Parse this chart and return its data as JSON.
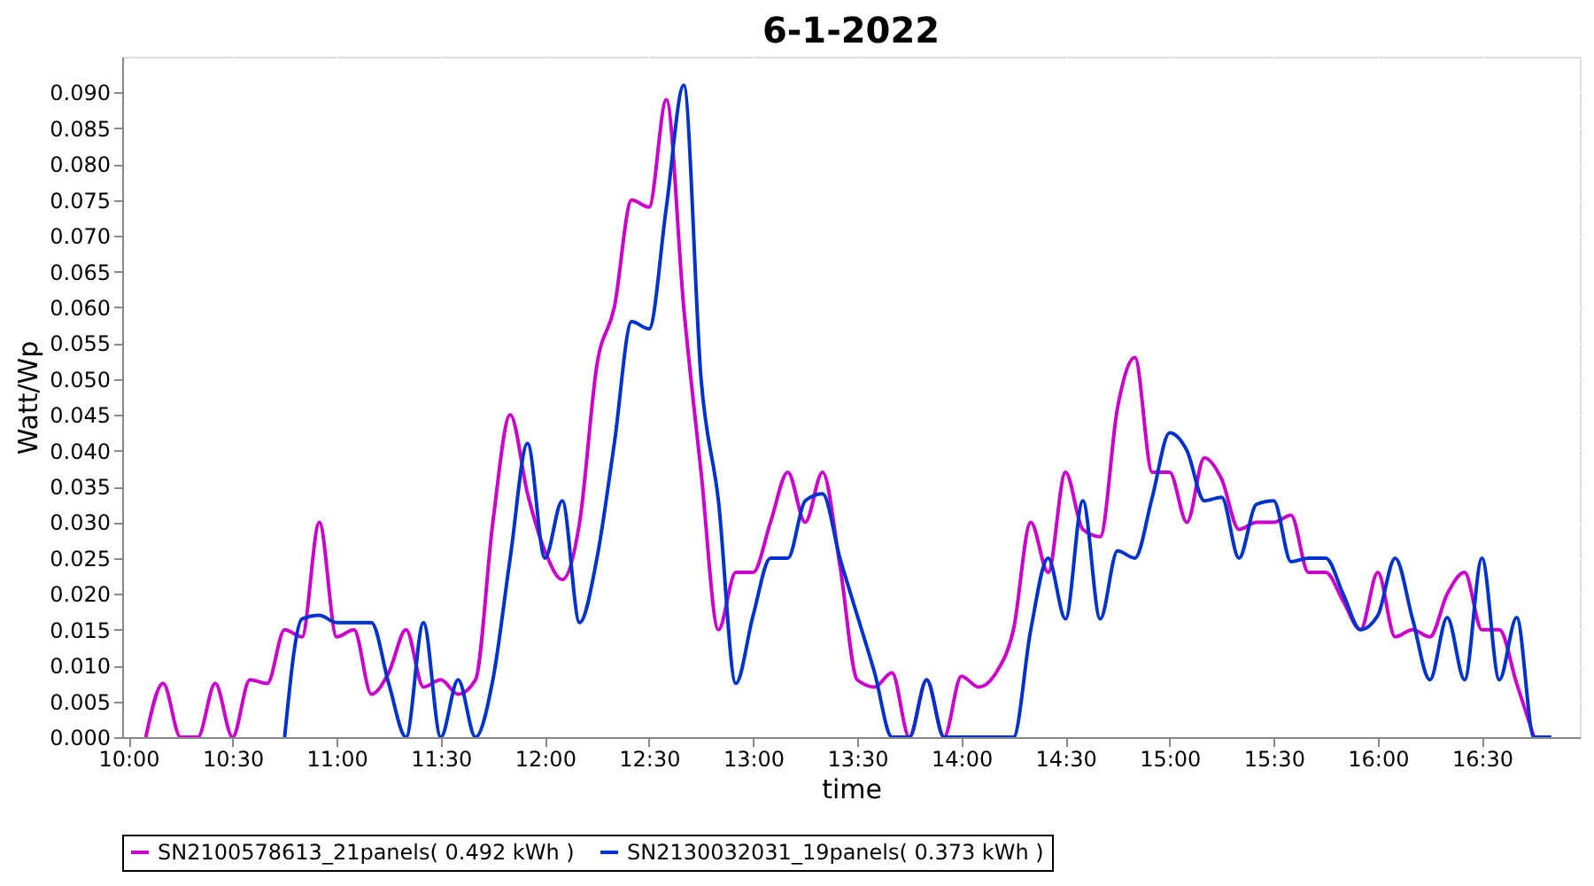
{
  "chart_data": {
    "type": "line",
    "title": "6-1-2022",
    "xlabel": "time",
    "ylabel": "Watt/Wp",
    "xlim": [
      9.97,
      16.97
    ],
    "ylim": [
      0,
      0.095
    ],
    "xticks": [
      {
        "value": 10,
        "label": "10:00"
      },
      {
        "value": 10.5,
        "label": "10:30"
      },
      {
        "value": 11,
        "label": "11:00"
      },
      {
        "value": 11.5,
        "label": "11:30"
      },
      {
        "value": 12,
        "label": "12:00"
      },
      {
        "value": 12.5,
        "label": "12:30"
      },
      {
        "value": 13,
        "label": "13:00"
      },
      {
        "value": 13.5,
        "label": "13:30"
      },
      {
        "value": 14,
        "label": "14:00"
      },
      {
        "value": 14.5,
        "label": "14:30"
      },
      {
        "value": 15,
        "label": "15:00"
      },
      {
        "value": 15.5,
        "label": "15:30"
      },
      {
        "value": 16,
        "label": "16:00"
      },
      {
        "value": 16.5,
        "label": "16:30"
      }
    ],
    "yticks": [
      {
        "value": 0,
        "label": "0.000"
      },
      {
        "value": 0.005,
        "label": "0.005"
      },
      {
        "value": 0.01,
        "label": "0.010"
      },
      {
        "value": 0.015,
        "label": "0.015"
      },
      {
        "value": 0.02,
        "label": "0.020"
      },
      {
        "value": 0.025,
        "label": "0.025"
      },
      {
        "value": 0.03,
        "label": "0.030"
      },
      {
        "value": 0.035,
        "label": "0.035"
      },
      {
        "value": 0.04,
        "label": "0.040"
      },
      {
        "value": 0.045,
        "label": "0.045"
      },
      {
        "value": 0.05,
        "label": "0.050"
      },
      {
        "value": 0.055,
        "label": "0.055"
      },
      {
        "value": 0.06,
        "label": "0.060"
      },
      {
        "value": 0.065,
        "label": "0.065"
      },
      {
        "value": 0.07,
        "label": "0.070"
      },
      {
        "value": 0.075,
        "label": "0.075"
      },
      {
        "value": 0.08,
        "label": "0.080"
      },
      {
        "value": 0.085,
        "label": "0.085"
      },
      {
        "value": 0.09,
        "label": "0.090"
      }
    ],
    "grid": true,
    "legend": "bottom",
    "line_style": "solid",
    "series": [
      {
        "name": "SN2100578613_21panels( 0.492 kWh )",
        "color": "#cc00cc",
        "x": [
          10.0833,
          10.1667,
          10.25,
          10.3333,
          10.4167,
          10.5,
          10.5833,
          10.6667,
          10.75,
          10.8333,
          10.9167,
          11,
          11.0833,
          11.1667,
          11.25,
          11.3333,
          11.4167,
          11.5,
          11.5833,
          11.6667,
          11.75,
          11.8333,
          11.9167,
          12,
          12.0833,
          12.1667,
          12.25,
          12.3333,
          12.4167,
          12.5,
          12.5833,
          12.6667,
          12.75,
          12.8333,
          12.9167,
          13,
          13.0833,
          13.1667,
          13.25,
          13.3333,
          13.4167,
          13.5,
          13.5833,
          13.6667,
          13.75,
          13.8333,
          13.9167,
          14,
          14.0833,
          14.1667,
          14.25,
          14.3333,
          14.4167,
          14.5,
          14.5833,
          14.6667,
          14.75,
          14.8333,
          14.9167,
          15,
          15.0833,
          15.1667,
          15.25,
          15.3333,
          15.4167,
          15.5,
          15.5833,
          15.6667,
          15.75,
          15.8333,
          15.9167,
          16,
          16.0833,
          16.1667,
          16.25,
          16.3333,
          16.4167,
          16.5,
          16.5833,
          16.6667,
          16.75
        ],
        "values": [
          0,
          0.0075,
          0,
          0,
          0.0075,
          0,
          0.008,
          0.0075,
          0.015,
          0.014,
          0.03,
          0.014,
          0.015,
          0.006,
          0.009,
          0.015,
          0.007,
          0.008,
          0.006,
          0.008,
          0.03,
          0.045,
          0.034,
          0.026,
          0.022,
          0.03,
          0.052,
          0.06,
          0.075,
          0.074,
          0.089,
          0.06,
          0.037,
          0.015,
          0.023,
          0.023,
          0.03,
          0.037,
          0.03,
          0.037,
          0.024,
          0.008,
          0.007,
          0.009,
          0,
          0.008,
          0,
          0.0085,
          0.007,
          0.009,
          0.015,
          0.03,
          0.023,
          0.037,
          0.029,
          0.028,
          0.046,
          0.053,
          0.037,
          0.037,
          0.03,
          0.039,
          0.036,
          0.029,
          0.03,
          0.03,
          0.031,
          0.023,
          0.023,
          0.019,
          0.015,
          0.023,
          0.014,
          0.015,
          0.014,
          0.02,
          0.023,
          0.015,
          0.015,
          0.0075,
          0
        ]
      },
      {
        "name": "SN2130032031_19panels( 0.373 kWh )",
        "color": "#0033cc",
        "x": [
          10.75,
          10.8333,
          10.9167,
          11,
          11.0833,
          11.1667,
          11.25,
          11.3333,
          11.4167,
          11.5,
          11.5833,
          11.6667,
          11.75,
          11.8333,
          11.9167,
          12,
          12.0833,
          12.1667,
          12.25,
          12.3333,
          12.4167,
          12.5,
          12.5833,
          12.6667,
          12.75,
          12.8333,
          12.9167,
          13,
          13.0833,
          13.1667,
          13.25,
          13.3333,
          13.4167,
          13.5,
          13.5833,
          13.6667,
          13.75,
          13.8333,
          13.9167,
          14,
          14.0833,
          14.1667,
          14.25,
          14.3333,
          14.4167,
          14.5,
          14.5833,
          14.6667,
          14.75,
          14.8333,
          14.9167,
          15,
          15.0833,
          15.1667,
          15.25,
          15.3333,
          15.4167,
          15.5,
          15.5833,
          15.6667,
          15.75,
          15.8333,
          15.9167,
          16,
          16.0833,
          16.1667,
          16.25,
          16.3333,
          16.4167,
          16.5,
          16.5833,
          16.6667,
          16.75,
          16.8333
        ],
        "values": [
          0,
          0.0165,
          0.017,
          0.016,
          0.016,
          0.016,
          0.0075,
          0,
          0.016,
          0,
          0.008,
          0,
          0.008,
          0.025,
          0.041,
          0.025,
          0.033,
          0.016,
          0.025,
          0.041,
          0.058,
          0.057,
          0.074,
          0.091,
          0.05,
          0.033,
          0.0075,
          0.017,
          0.025,
          0.025,
          0.033,
          0.034,
          0.025,
          0.017,
          0.009,
          0,
          0,
          0.008,
          0,
          0,
          0,
          0,
          0,
          0.015,
          0.025,
          0.0165,
          0.033,
          0.0165,
          0.026,
          0.025,
          0.0335,
          0.0425,
          0.04,
          0.033,
          0.0335,
          0.025,
          0.0325,
          0.033,
          0.0245,
          0.025,
          0.025,
          0.02,
          0.015,
          0.017,
          0.025,
          0.0165,
          0.008,
          0.0167,
          0.008,
          0.025,
          0.008,
          0.0167,
          0,
          0
        ]
      }
    ]
  }
}
